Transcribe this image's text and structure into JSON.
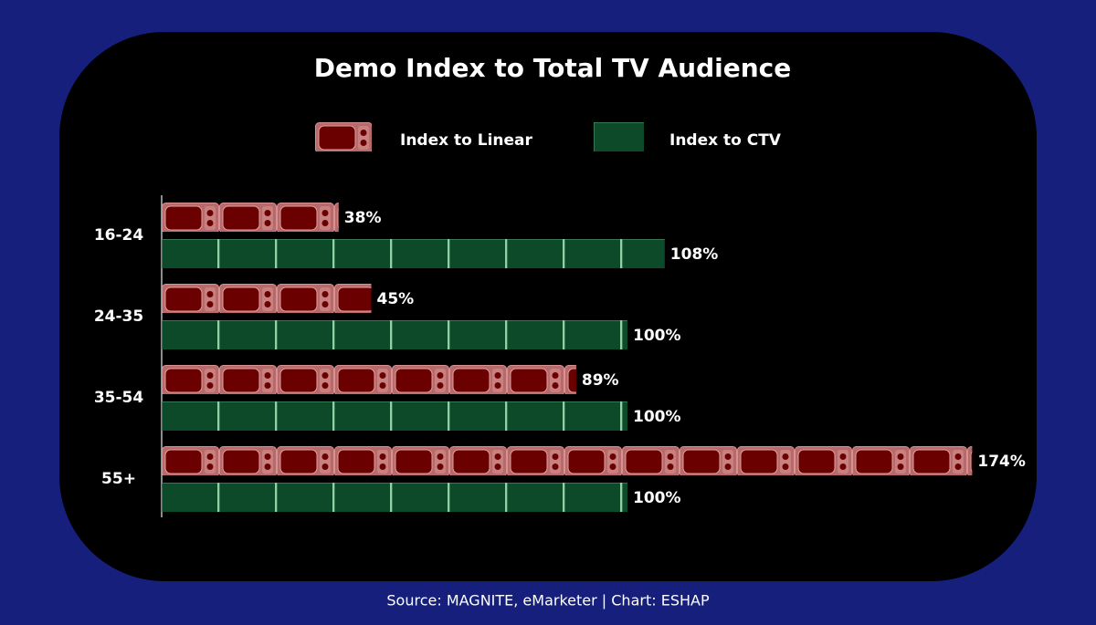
{
  "chart_data": {
    "type": "bar",
    "orientation": "horizontal",
    "title": "Demo Index to Total TV Audience",
    "categories": [
      "16-24",
      "24-35",
      "35-54",
      "55+"
    ],
    "series": [
      {
        "name": "Index to Linear",
        "color": "#6b0000",
        "values": [
          38,
          45,
          89,
          174
        ],
        "value_labels": [
          "38%",
          "45%",
          "89%",
          "174%"
        ]
      },
      {
        "name": "Index to CTV",
        "color": "#0d4a2a",
        "values": [
          108,
          100,
          100,
          100
        ],
        "value_labels": [
          "108%",
          "100%",
          "100%",
          "100%"
        ]
      }
    ],
    "source": "Source: MAGNITE, eMarketer | Chart: ESHAP"
  }
}
